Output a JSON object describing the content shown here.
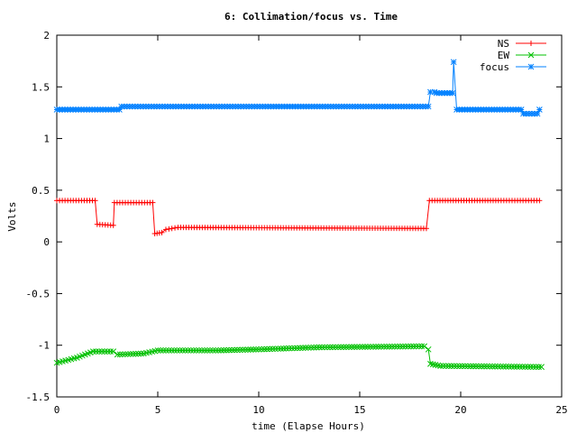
{
  "chart_data": {
    "type": "line",
    "title": "6: Collimation/focus vs. Time",
    "xlabel": "time (Elapse Hours)",
    "ylabel": "Volts",
    "xlim": [
      0,
      25
    ],
    "ylim": [
      -1.5,
      2
    ],
    "xticks": [
      0,
      5,
      10,
      15,
      20,
      25
    ],
    "xtick_labels": [
      "0",
      "5",
      "10",
      "15",
      "20",
      "25"
    ],
    "yticks": [
      -1.5,
      -1,
      -0.5,
      0,
      0.5,
      1,
      1.5,
      2
    ],
    "ytick_labels": [
      "-1.5",
      "-1",
      "-0.5",
      "0",
      "0.5",
      "1",
      "1.5",
      "2"
    ],
    "grid": false,
    "legend_position": "top-right",
    "series": [
      {
        "name": "NS",
        "color": "#ff0000",
        "marker": "plus",
        "points": [
          [
            0,
            0.4
          ],
          [
            1.9,
            0.4
          ],
          [
            2.0,
            0.17
          ],
          [
            2.8,
            0.16
          ],
          [
            2.85,
            0.38
          ],
          [
            4.75,
            0.38
          ],
          [
            4.85,
            0.08
          ],
          [
            5.2,
            0.09
          ],
          [
            5.4,
            0.12
          ],
          [
            6.0,
            0.14
          ],
          [
            18.3,
            0.13
          ],
          [
            18.45,
            0.4
          ],
          [
            22,
            0.4
          ],
          [
            23.9,
            0.4
          ]
        ]
      },
      {
        "name": "EW",
        "color": "#00c000",
        "marker": "cross",
        "points": [
          [
            0,
            -1.17
          ],
          [
            1,
            -1.12
          ],
          [
            1.8,
            -1.06
          ],
          [
            2.8,
            -1.06
          ],
          [
            3.0,
            -1.09
          ],
          [
            4.3,
            -1.08
          ],
          [
            5,
            -1.05
          ],
          [
            8,
            -1.05
          ],
          [
            10,
            -1.04
          ],
          [
            13,
            -1.02
          ],
          [
            18.2,
            -1.01
          ],
          [
            18.4,
            -1.04
          ],
          [
            18.5,
            -1.18
          ],
          [
            19,
            -1.2
          ],
          [
            24,
            -1.21
          ]
        ]
      },
      {
        "name": "focus",
        "color": "#0080ff",
        "marker": "star",
        "points": [
          [
            0,
            1.28
          ],
          [
            3.1,
            1.28
          ],
          [
            3.2,
            1.31
          ],
          [
            18.4,
            1.31
          ],
          [
            18.5,
            1.45
          ],
          [
            18.7,
            1.45
          ],
          [
            18.8,
            1.44
          ],
          [
            19.6,
            1.44
          ],
          [
            19.65,
            1.74
          ],
          [
            19.8,
            1.28
          ],
          [
            23,
            1.28
          ],
          [
            23.1,
            1.24
          ],
          [
            23.8,
            1.24
          ],
          [
            23.9,
            1.28
          ]
        ]
      }
    ]
  }
}
